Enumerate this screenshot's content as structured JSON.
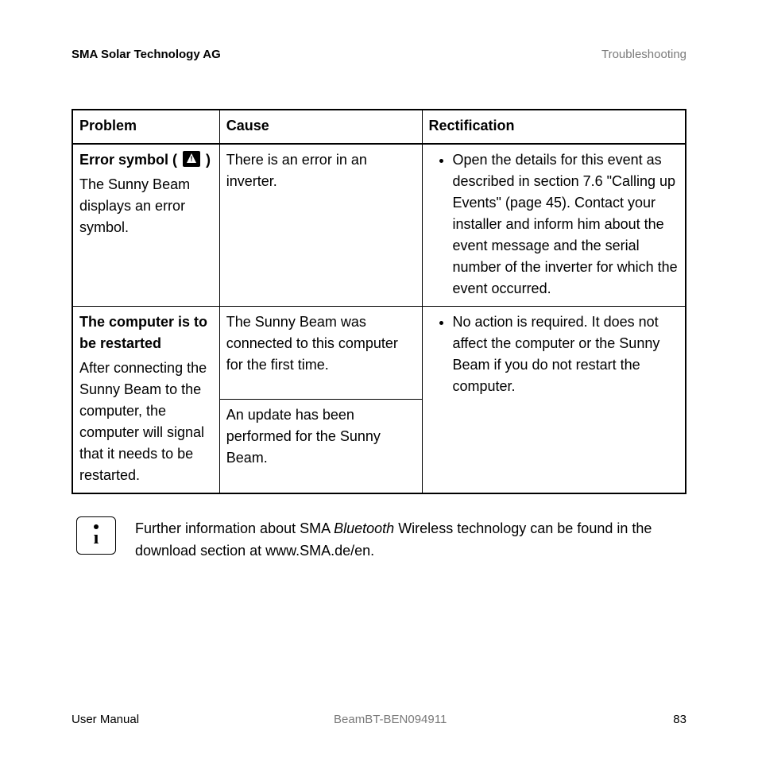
{
  "header": {
    "left": "SMA Solar Technology AG",
    "right": "Troubleshooting"
  },
  "table": {
    "columns": [
      "Problem",
      "Cause",
      "Rectification"
    ],
    "rows": [
      {
        "problem_title_pre": "Error symbol ( ",
        "problem_title_post": " )",
        "problem_desc": "The Sunny Beam displays an error symbol.",
        "cause": "There is an error in an inverter.",
        "rectification": "Open the details for this event as described in section 7.6  \"Calling up Events\" (page 45). Contact your installer and inform him about the event message and the serial number of the inverter for which the event occurred."
      },
      {
        "problem_title": "The computer is to be restarted",
        "problem_desc": "After connecting the Sunny Beam to the computer, the computer will signal that it needs to be restarted.",
        "cause_a": "The Sunny Beam was connected to this computer for the first time.",
        "cause_b": "An update has been performed for the Sunny Beam.",
        "rectification": "No action is required. It does not affect the computer or the Sunny Beam if you do not restart the computer."
      }
    ]
  },
  "note": {
    "pre": "Further information about SMA ",
    "italic": "Bluetooth",
    "post": " Wireless technology can be found in the download section at www.SMA.de/en."
  },
  "footer": {
    "left": "User Manual",
    "center": "BeamBT-BEN094911",
    "page": "83"
  },
  "colors": {
    "text": "#000000",
    "muted": "#7a7a7a",
    "background": "#ffffff",
    "border": "#000000"
  }
}
